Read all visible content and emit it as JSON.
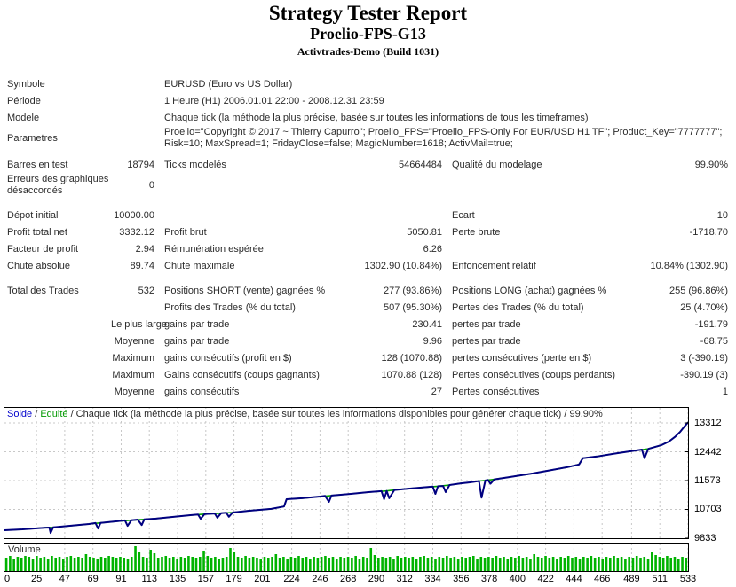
{
  "header": {
    "title": "Strategy Tester Report",
    "subtitle": "Proelio-FPS-G13",
    "server": "Activtrades-Demo (Build 1031)"
  },
  "report": {
    "rows": [
      {
        "wide": true,
        "label": "Symbole",
        "value": "EURUSD (Euro vs US Dollar)"
      },
      {
        "wide": true,
        "label": "Période",
        "value": "1 Heure (H1) 2006.01.01 22:00 - 2008.12.31 23:59"
      },
      {
        "wide": true,
        "label": "Modele",
        "value": "Chaque tick (la méthode la plus précise, basée sur toutes les informations de tous les timeframes)"
      },
      {
        "wide": true,
        "label": "Parametres",
        "value": "Proelio=\"Copyright © 2017 ~ Thierry Capurro\"; Proelio_FPS=\"Proelio_FPS-Only For EUR/USD H1 TF\"; Product_Key=\"7777777\"; Risk=10; MaxSpread=1; FridayClose=false; MagicNumber=1618; ActivMail=true;"
      },
      {
        "gap": 8
      },
      {
        "c": [
          "Barres en test",
          "18794",
          "Ticks modelés",
          "54664484",
          "Qualité du modelage",
          "99.90%"
        ]
      },
      {
        "c": [
          "Erreurs des graphiques désaccordés",
          "0",
          "",
          "",
          "",
          ""
        ]
      },
      {
        "gap": 12
      },
      {
        "c": [
          "Dépot initial",
          "10000.00",
          "",
          "",
          "Ecart",
          "10"
        ]
      },
      {
        "c": [
          "Profit total net",
          "3332.12",
          "Profit brut",
          "5050.81",
          "Perte brute",
          "-1718.70"
        ]
      },
      {
        "c": [
          "Facteur de profit",
          "2.94",
          "Rémunération espérée",
          "6.26",
          "",
          ""
        ]
      },
      {
        "c": [
          "Chute absolue",
          "89.74",
          "Chute maximale",
          "1302.90 (10.84%)",
          "Enfoncement relatif",
          "10.84% (1302.90)"
        ]
      },
      {
        "gap": 9
      },
      {
        "c": [
          "Total des Trades",
          "532",
          "Positions SHORT (vente) gagnées %",
          "277 (93.86%)",
          "Positions LONG (achat) gagnées %",
          "255 (96.86%)"
        ]
      },
      {
        "c": [
          "",
          "",
          "Profits des Trades (% du total)",
          "507 (95.30%)",
          "Pertes des Trades (% du total)",
          "25 (4.70%)"
        ]
      },
      {
        "c": [
          "",
          "Le plus large",
          "gains par trade",
          "230.41",
          "pertes par trade",
          "-191.79"
        ]
      },
      {
        "c": [
          "",
          "Moyenne",
          "gains par trade",
          "9.96",
          "pertes par trade",
          "-68.75"
        ]
      },
      {
        "c": [
          "",
          "Maximum",
          "gains consécutifs (profit en $)",
          "128 (1070.88)",
          "pertes consécutives (perte en $)",
          "3 (-390.19)"
        ]
      },
      {
        "c": [
          "",
          "Maximum",
          "Gains consécutifs (coups gagnants)",
          "1070.88 (128)",
          "Pertes consécutives (coups perdants)",
          "-390.19 (3)"
        ]
      },
      {
        "c": [
          "",
          "Moyenne",
          "gains consécutifs",
          "27",
          "Pertes consécutives",
          "1"
        ]
      }
    ]
  },
  "chart_data": {
    "type": "line",
    "legend": {
      "solde": "Solde",
      "sep": " / ",
      "equite": "Equité",
      "rest": " / Chaque tick (la méthode la plus précise, basée sur toutes les informations disponibles pour générer chaque tick) / 99.90%"
    },
    "volume_label": "Volume",
    "y_ticks": [
      13312,
      12442,
      11573,
      10703,
      9833
    ],
    "x_ticks": [
      0,
      25,
      47,
      69,
      91,
      113,
      135,
      157,
      179,
      201,
      224,
      246,
      268,
      290,
      312,
      334,
      356,
      378,
      400,
      422,
      444,
      466,
      489,
      511,
      533
    ],
    "x_max": 533,
    "y_range": [
      9833,
      13312
    ],
    "colors": {
      "balance": "#000080",
      "equity": "#00a000",
      "volume": "#00b300",
      "grid": "#c8c8c8",
      "legend_solde": "#0000cc",
      "legend_equite": "#009900",
      "border": "#000000"
    },
    "series": [
      {
        "name": "Solde",
        "points": [
          [
            0,
            10075
          ],
          [
            14,
            10100
          ],
          [
            31,
            10150
          ],
          [
            35,
            10155
          ],
          [
            36,
            9990
          ],
          [
            38,
            10160
          ],
          [
            52,
            10210
          ],
          [
            66,
            10262
          ],
          [
            71,
            10290
          ],
          [
            73,
            10125
          ],
          [
            75,
            10295
          ],
          [
            87,
            10342
          ],
          [
            94,
            10370
          ],
          [
            96,
            10205
          ],
          [
            99,
            10375
          ],
          [
            104,
            10396
          ],
          [
            107,
            10230
          ],
          [
            109,
            10400
          ],
          [
            118,
            10425
          ],
          [
            131,
            10476
          ],
          [
            145,
            10530
          ],
          [
            151,
            10550
          ],
          [
            153,
            10420
          ],
          [
            156,
            10560
          ],
          [
            164,
            10580
          ],
          [
            166,
            10455
          ],
          [
            169,
            10590
          ],
          [
            173,
            10600
          ],
          [
            175,
            10480
          ],
          [
            178,
            10610
          ],
          [
            190,
            10660
          ],
          [
            208,
            10720
          ],
          [
            218,
            10790
          ],
          [
            220,
            11010
          ],
          [
            232,
            11040
          ],
          [
            246,
            11090
          ],
          [
            250,
            11110
          ],
          [
            253,
            10930
          ],
          [
            255,
            11120
          ],
          [
            270,
            11170
          ],
          [
            284,
            11225
          ],
          [
            294,
            11255
          ],
          [
            296,
            11010
          ],
          [
            298,
            11260
          ],
          [
            300,
            11040
          ],
          [
            304,
            11290
          ],
          [
            315,
            11330
          ],
          [
            325,
            11360
          ],
          [
            334,
            11390
          ],
          [
            336,
            11170
          ],
          [
            338,
            11400
          ],
          [
            342,
            11410
          ],
          [
            344,
            11225
          ],
          [
            347,
            11440
          ],
          [
            356,
            11490
          ],
          [
            363,
            11520
          ],
          [
            370,
            11560
          ],
          [
            372,
            11060
          ],
          [
            375,
            11575
          ],
          [
            377,
            11590
          ],
          [
            379,
            11480
          ],
          [
            382,
            11610
          ],
          [
            394,
            11680
          ],
          [
            412,
            11790
          ],
          [
            425,
            11880
          ],
          [
            439,
            11980
          ],
          [
            448,
            12060
          ],
          [
            451,
            12250
          ],
          [
            462,
            12300
          ],
          [
            476,
            12390
          ],
          [
            490,
            12470
          ],
          [
            497,
            12510
          ],
          [
            499,
            12250
          ],
          [
            502,
            12530
          ],
          [
            512,
            12640
          ],
          [
            518,
            12750
          ],
          [
            523,
            12900
          ],
          [
            527,
            13050
          ],
          [
            530,
            13200
          ],
          [
            533,
            13330
          ]
        ]
      },
      {
        "name": "Equité",
        "points": [
          [
            0,
            10075
          ],
          [
            14,
            10100
          ],
          [
            31,
            10150
          ],
          [
            38,
            10160
          ],
          [
            52,
            10210
          ],
          [
            66,
            10262
          ],
          [
            75,
            10295
          ],
          [
            87,
            10342
          ],
          [
            99,
            10375
          ],
          [
            109,
            10400
          ],
          [
            118,
            10425
          ],
          [
            131,
            10476
          ],
          [
            145,
            10530
          ],
          [
            156,
            10560
          ],
          [
            169,
            10590
          ],
          [
            178,
            10610
          ],
          [
            190,
            10660
          ],
          [
            208,
            10720
          ],
          [
            218,
            10790
          ],
          [
            220,
            11010
          ],
          [
            232,
            11040
          ],
          [
            246,
            11090
          ],
          [
            255,
            11120
          ],
          [
            270,
            11170
          ],
          [
            284,
            11225
          ],
          [
            298,
            11260
          ],
          [
            304,
            11290
          ],
          [
            315,
            11330
          ],
          [
            325,
            11360
          ],
          [
            338,
            11400
          ],
          [
            347,
            11440
          ],
          [
            356,
            11490
          ],
          [
            363,
            11520
          ],
          [
            370,
            11560
          ],
          [
            375,
            11575
          ],
          [
            382,
            11610
          ],
          [
            394,
            11680
          ],
          [
            412,
            11790
          ],
          [
            425,
            11880
          ],
          [
            439,
            11980
          ],
          [
            448,
            12060
          ],
          [
            451,
            12250
          ],
          [
            462,
            12300
          ],
          [
            476,
            12390
          ],
          [
            490,
            12470
          ],
          [
            502,
            12530
          ],
          [
            512,
            12640
          ],
          [
            518,
            12750
          ],
          [
            523,
            12900
          ],
          [
            527,
            13050
          ],
          [
            530,
            13200
          ],
          [
            533,
            13330
          ]
        ]
      }
    ],
    "volume_bars": [
      15,
      17,
      14,
      16,
      15,
      17,
      16,
      14,
      17,
      15,
      16,
      14,
      17,
      15,
      16,
      14,
      16,
      17,
      15,
      16,
      15,
      19,
      16,
      15,
      14,
      16,
      15,
      17,
      16,
      15,
      16,
      15,
      14,
      16,
      28,
      22,
      16,
      15,
      24,
      20,
      15,
      16,
      17,
      15,
      16,
      14,
      16,
      15,
      17,
      16,
      15,
      16,
      23,
      17,
      15,
      16,
      14,
      15,
      16,
      26,
      21,
      16,
      15,
      17,
      15,
      16,
      15,
      14,
      16,
      15,
      16,
      19,
      15,
      16,
      14,
      16,
      15,
      17,
      15,
      16,
      14,
      16,
      15,
      16,
      17,
      15,
      16,
      14,
      16,
      15,
      16,
      15,
      17,
      14,
      16,
      15,
      26,
      18,
      15,
      16,
      15,
      16,
      14,
      17,
      15,
      16,
      15,
      16,
      14,
      16,
      17,
      15,
      16,
      14,
      16,
      15,
      17,
      15,
      16,
      14,
      16,
      15,
      16,
      17,
      14,
      16,
      15,
      16,
      15,
      17,
      15,
      16,
      14,
      16,
      15,
      17,
      15,
      16,
      14,
      19,
      16,
      15,
      17,
      15,
      16,
      14,
      16,
      15,
      17,
      15,
      16,
      14,
      16,
      15,
      17,
      15,
      16,
      14,
      16,
      15,
      17,
      15,
      16,
      14,
      16,
      15,
      17,
      15,
      16,
      14,
      22,
      18,
      16,
      15,
      17,
      15,
      16,
      14,
      16,
      15
    ]
  }
}
